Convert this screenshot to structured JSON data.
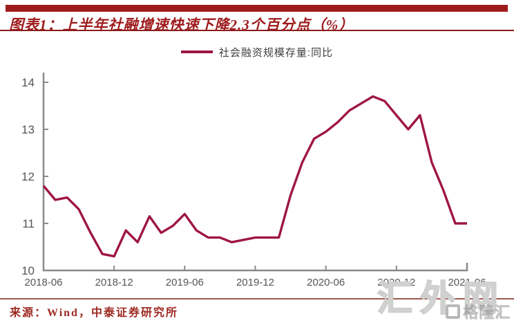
{
  "colors": {
    "accent_red": "#9E1B1D",
    "rule_red": "#8B1A1A",
    "source_red": "#9E2A22",
    "bottom_rule": "#8C3B2E",
    "axis_gray": "#8A8A8A",
    "tick_label_gray": "#555555",
    "watermark_gray": "#D4D4D4"
  },
  "header": {
    "title": "图表1：上半年社融增速快速下降2.3个百分点（%）"
  },
  "legend": {
    "label": "社会融资规模存量:同比"
  },
  "chart_data": {
    "type": "line",
    "title": "图表1：上半年社融增速快速下降2.3个百分点（%）",
    "xlabel": "",
    "ylabel": "",
    "ylim": [
      10,
      14
    ],
    "y_ticks": [
      10,
      11,
      12,
      13,
      14
    ],
    "x_tick_labels": [
      "2018-06",
      "2018-12",
      "2019-06",
      "2019-12",
      "2020-06",
      "2020-12",
      "2021-06"
    ],
    "grid": false,
    "legend_position": "top-center",
    "line_color": "#9E1643",
    "x": [
      "2018-06",
      "2018-07",
      "2018-08",
      "2018-09",
      "2018-10",
      "2018-11",
      "2018-12",
      "2019-01",
      "2019-02",
      "2019-03",
      "2019-04",
      "2019-05",
      "2019-06",
      "2019-07",
      "2019-08",
      "2019-09",
      "2019-10",
      "2019-11",
      "2019-12",
      "2020-01",
      "2020-02",
      "2020-03",
      "2020-04",
      "2020-05",
      "2020-06",
      "2020-07",
      "2020-08",
      "2020-09",
      "2020-10",
      "2020-11",
      "2020-12",
      "2021-01",
      "2021-02",
      "2021-03",
      "2021-04",
      "2021-05",
      "2021-06"
    ],
    "series": [
      {
        "name": "社会融资规模存量:同比",
        "values": [
          11.8,
          11.5,
          11.55,
          11.3,
          10.8,
          10.35,
          10.3,
          10.85,
          10.6,
          11.15,
          10.8,
          10.95,
          11.2,
          10.85,
          10.7,
          10.7,
          10.6,
          10.65,
          10.7,
          10.7,
          10.7,
          11.6,
          12.3,
          12.8,
          12.95,
          13.15,
          13.4,
          13.55,
          13.7,
          13.6,
          13.3,
          13.0,
          13.3,
          12.3,
          11.7,
          11.0,
          11.0
        ]
      }
    ]
  },
  "footer": {
    "source": "来源：Wind，中泰证券研究所"
  },
  "watermark": {
    "site": "汇外网",
    "logo_text": "格隆汇"
  }
}
